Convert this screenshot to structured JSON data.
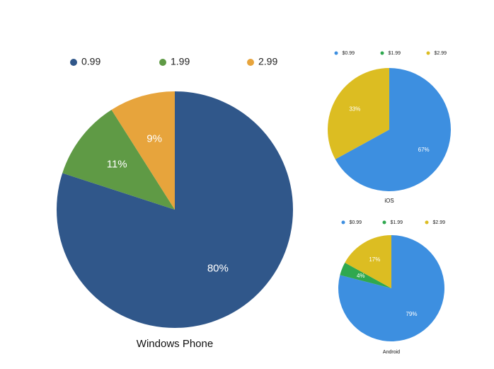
{
  "chart_data": [
    {
      "type": "pie",
      "title": "Windows Phone",
      "categories": [
        "0.99",
        "1.99",
        "2.99"
      ],
      "values": [
        80,
        11,
        9
      ],
      "value_labels": [
        "80%",
        "11%",
        "9%"
      ],
      "colors": [
        "#30578a",
        "#5f9a45",
        "#e7a43c"
      ]
    },
    {
      "type": "pie",
      "title": "iOS",
      "categories": [
        "$0.99",
        "$1.99",
        "$2.99"
      ],
      "values": [
        67,
        0,
        33
      ],
      "value_labels": [
        "67%",
        null,
        "33%"
      ],
      "colors": [
        "#3d8fe0",
        "#2fa84f",
        "#dcbd22"
      ]
    },
    {
      "type": "pie",
      "title": "Android",
      "categories": [
        "$0.99",
        "$1.99",
        "$2.99"
      ],
      "values": [
        79,
        4,
        17
      ],
      "value_labels": [
        "79%",
        "4%",
        "17%"
      ],
      "colors": [
        "#3d8fe0",
        "#2fa84f",
        "#dcbd22"
      ]
    }
  ]
}
